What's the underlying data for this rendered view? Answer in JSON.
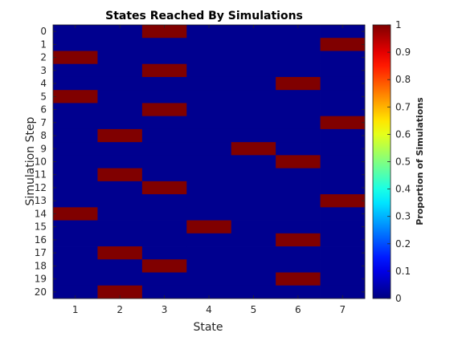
{
  "chart_data": {
    "type": "heatmap",
    "title": "States Reached By Simulations",
    "xlabel": "State",
    "ylabel": "Simulation Step",
    "x_categories": [
      "1",
      "2",
      "3",
      "4",
      "5",
      "6",
      "7"
    ],
    "y_categories": [
      "0",
      "1",
      "2",
      "3",
      "4",
      "5",
      "6",
      "7",
      "8",
      "9",
      "10",
      "11",
      "12",
      "13",
      "14",
      "15",
      "16",
      "17",
      "18",
      "19",
      "20"
    ],
    "values": [
      [
        0,
        0,
        1,
        0,
        0,
        0,
        0
      ],
      [
        0,
        0,
        0,
        0,
        0,
        0,
        1
      ],
      [
        1,
        0,
        0,
        0,
        0,
        0,
        0
      ],
      [
        0,
        0,
        1,
        0,
        0,
        0,
        0
      ],
      [
        0,
        0,
        0,
        0,
        0,
        1,
        0
      ],
      [
        1,
        0,
        0,
        0,
        0,
        0,
        0
      ],
      [
        0,
        0,
        1,
        0,
        0,
        0,
        0
      ],
      [
        0,
        0,
        0,
        0,
        0,
        0,
        1
      ],
      [
        0,
        1,
        0,
        0,
        0,
        0,
        0
      ],
      [
        0,
        0,
        0,
        0,
        1,
        0,
        0
      ],
      [
        0,
        0,
        0,
        0,
        0,
        1,
        0
      ],
      [
        0,
        1,
        0,
        0,
        0,
        0,
        0
      ],
      [
        0,
        0,
        1,
        0,
        0,
        0,
        0
      ],
      [
        0,
        0,
        0,
        0,
        0,
        0,
        1
      ],
      [
        1,
        0,
        0,
        0,
        0,
        0,
        0
      ],
      [
        0,
        0,
        0,
        1,
        0,
        0,
        0
      ],
      [
        0,
        0,
        0,
        0,
        0,
        1,
        0
      ],
      [
        0,
        1,
        0,
        0,
        0,
        0,
        0
      ],
      [
        0,
        0,
        1,
        0,
        0,
        0,
        0
      ],
      [
        0,
        0,
        0,
        0,
        0,
        1,
        0
      ],
      [
        0,
        1,
        0,
        0,
        0,
        0,
        0
      ]
    ],
    "colormap": "jet",
    "low_color": "#00008f",
    "high_color": "#800000",
    "colorbar": {
      "label": "Proportion of Simulations",
      "range": [
        0,
        1
      ],
      "ticks": [
        "0",
        "0.1",
        "0.2",
        "0.3",
        "0.4",
        "0.5",
        "0.6",
        "0.7",
        "0.8",
        "0.9",
        "1"
      ]
    },
    "grid": false
  }
}
